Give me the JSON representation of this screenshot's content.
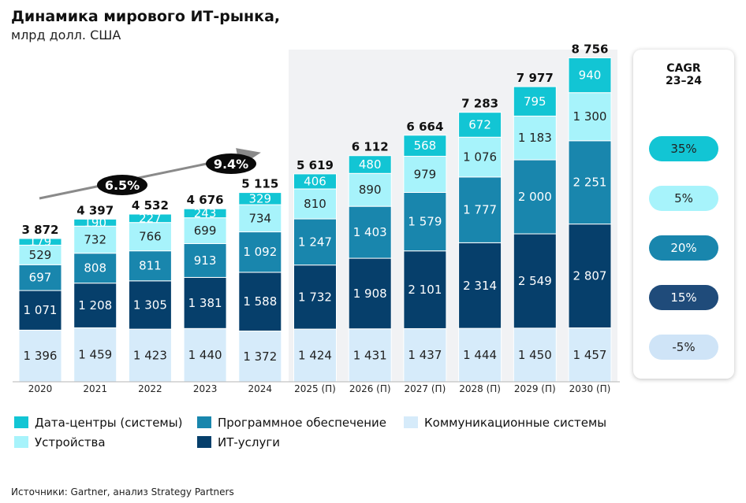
{
  "header": {
    "title": "Динамика мирового ИТ-рынка,",
    "subtitle": "млрд долл. США"
  },
  "chart_data": {
    "type": "bar",
    "stacked": true,
    "title": "Динамика мирового ИТ-рынка,",
    "subtitle": "млрд долл. США",
    "categories": [
      "2020",
      "2021",
      "2022",
      "2023",
      "2024",
      "2025 (П)",
      "2026 (П)",
      "2027 (П)",
      "2028 (П)",
      "2029 (П)",
      "2030 (П)"
    ],
    "totals": [
      "3 872",
      "4 397",
      "4 532",
      "4 676",
      "5 115",
      "5 619",
      "6 112",
      "6 664",
      "7 283",
      "7 977",
      "8 756"
    ],
    "series": [
      {
        "name": "Коммуникационные системы",
        "color": "#d6ebfa",
        "text_color": "#222222",
        "values": [
          1396,
          1459,
          1423,
          1440,
          1372,
          1424,
          1431,
          1437,
          1444,
          1450,
          1457
        ],
        "labels": [
          "1 396",
          "1 459",
          "1 423",
          "1 440",
          "1 372",
          "1 424",
          "1 431",
          "1 437",
          "1 444",
          "1 450",
          "1 457"
        ]
      },
      {
        "name": "ИТ-услуги",
        "color": "#063f6b",
        "text_color": "#ffffff",
        "values": [
          1071,
          1208,
          1305,
          1381,
          1588,
          1732,
          1908,
          2101,
          2314,
          2549,
          2807
        ],
        "labels": [
          "1 071",
          "1 208",
          "1 305",
          "1 381",
          "1 588",
          "1 732",
          "1 908",
          "2 101",
          "2 314",
          "2 549",
          "2 807"
        ]
      },
      {
        "name": "Программное обеспечение",
        "color": "#1986ad",
        "text_color": "#ffffff",
        "values": [
          697,
          808,
          811,
          913,
          1092,
          1247,
          1403,
          1579,
          1777,
          2000,
          2251
        ],
        "labels": [
          "697",
          "808",
          "811",
          "913",
          "1 092",
          "1 247",
          "1 403",
          "1 579",
          "1 777",
          "2 000",
          "2 251"
        ]
      },
      {
        "name": "Устройства",
        "color": "#a7f3fb",
        "text_color": "#222222",
        "values": [
          529,
          732,
          766,
          699,
          734,
          810,
          890,
          979,
          1076,
          1183,
          1300
        ],
        "labels": [
          "529",
          "732",
          "766",
          "699",
          "734",
          "810",
          "890",
          "979",
          "1 076",
          "1 183",
          "1 300"
        ]
      },
      {
        "name": "Дата-центры (системы)",
        "color": "#12c5d4",
        "text_color": "#ffffff",
        "values": [
          179,
          190,
          227,
          243,
          329,
          406,
          480,
          568,
          672,
          795,
          940
        ],
        "labels": [
          "179",
          "190",
          "227",
          "243",
          "329",
          "406",
          "480",
          "568",
          "672",
          "795",
          "940"
        ]
      }
    ],
    "ylim": [
      0,
      9000
    ],
    "forecast_start_index": 5,
    "growth_annotations": [
      "6.5%",
      "9.4%"
    ],
    "cagr": {
      "title": "CAGR",
      "period": "23–24",
      "values": [
        "35%",
        "5%",
        "20%",
        "15%",
        "-5%"
      ]
    }
  },
  "legend": {
    "items": [
      {
        "label": "Дата-центры (системы)",
        "color": "#12c5d4"
      },
      {
        "label": "Программное обеспечение",
        "color": "#1986ad"
      },
      {
        "label": "Коммуникационные системы",
        "color": "#d6ebfa"
      },
      {
        "label": "Устройства",
        "color": "#a7f3fb"
      },
      {
        "label": "ИТ-услуги",
        "color": "#063f6b"
      }
    ]
  },
  "footer": {
    "source": "Источники: Gartner, анализ Strategy Partners"
  }
}
